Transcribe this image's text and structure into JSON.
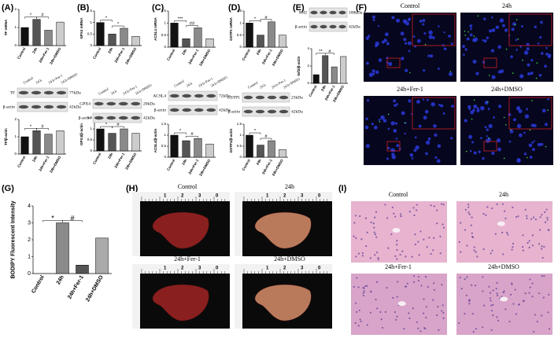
{
  "panels": [
    "(A)",
    "(B)",
    "(C)",
    "(D)",
    "(E)",
    "(F)",
    "(G)",
    "(H)",
    "(I)"
  ],
  "chart_data": [
    {
      "type": "bar",
      "ylabel": "TF mRNA",
      "categories": [
        "Control",
        "24h",
        "24h+Fer-1",
        "24h+DMSO"
      ],
      "values": [
        1.0,
        1.45,
        0.85,
        1.3
      ],
      "colors": [
        "#111111",
        "#555555",
        "#8a8a8a",
        "#cccccc"
      ],
      "ylim": [
        0,
        2
      ],
      "yticks": [
        0,
        1,
        2
      ],
      "annotations": [
        "*",
        "#"
      ]
    },
    {
      "type": "bar",
      "ylabel": "TF/β-actin",
      "categories": [
        "Control",
        "24h",
        "24h+Fer-1",
        "24h+DMSO"
      ],
      "values": [
        1.0,
        1.35,
        1.15,
        1.35
      ],
      "colors": [
        "#111111",
        "#555555",
        "#8a8a8a",
        "#cccccc"
      ],
      "ylim": [
        0,
        2
      ],
      "yticks": [
        0,
        1,
        2
      ],
      "annotations": [
        "*",
        "#"
      ]
    },
    {
      "type": "bar",
      "ylabel": "GPX4 mRNA",
      "categories": [
        "Control",
        "24h",
        "24h+Fer-1",
        "24h+DMSO"
      ],
      "values": [
        1.0,
        0.5,
        0.75,
        0.4
      ],
      "colors": [
        "#111111",
        "#555555",
        "#8a8a8a",
        "#cccccc"
      ],
      "ylim": [
        0,
        1.5
      ],
      "yticks": [
        0,
        0.5,
        1,
        1.5
      ],
      "annotations": [
        "*",
        "*"
      ]
    },
    {
      "type": "bar",
      "ylabel": "GPX4/β-actin",
      "categories": [
        "Control",
        "24h",
        "24h+Fer-1",
        "24h+DMSO"
      ],
      "values": [
        1.0,
        0.8,
        1.0,
        0.8
      ],
      "colors": [
        "#111111",
        "#555555",
        "#8a8a8a",
        "#cccccc"
      ],
      "ylim": [
        0,
        1.5
      ],
      "yticks": [
        0,
        0.5,
        1,
        1.5
      ],
      "annotations": [
        "*",
        "#"
      ]
    },
    {
      "type": "bar",
      "ylabel": "ACSL4 mRNA",
      "categories": [
        "Control",
        "24h",
        "24h+Fer-1",
        "24h+DMSO"
      ],
      "values": [
        1.0,
        0.35,
        0.8,
        0.35
      ],
      "colors": [
        "#111111",
        "#555555",
        "#8a8a8a",
        "#cccccc"
      ],
      "ylim": [
        0,
        1.5
      ],
      "yticks": [
        0,
        0.5,
        1,
        1.5
      ],
      "annotations": [
        "***",
        "##"
      ]
    },
    {
      "type": "bar",
      "ylabel": "ACSL4/β-actin",
      "categories": [
        "Control",
        "24h",
        "24h+Fer-1",
        "24h+DMSO"
      ],
      "values": [
        1.0,
        0.75,
        0.85,
        0.6
      ],
      "colors": [
        "#111111",
        "#555555",
        "#8a8a8a",
        "#cccccc"
      ],
      "ylim": [
        0,
        1.5
      ],
      "yticks": [
        0,
        0.5,
        1,
        1.5
      ],
      "annotations": [
        "*",
        "#"
      ]
    },
    {
      "type": "bar",
      "ylabel": "GSTP1 mRNA",
      "categories": [
        "Control",
        "24h",
        "24h+Fer-1",
        "24h+DMSO"
      ],
      "values": [
        1.0,
        0.5,
        1.05,
        0.5
      ],
      "colors": [
        "#111111",
        "#555555",
        "#8a8a8a",
        "#cccccc"
      ],
      "ylim": [
        0,
        1.5
      ],
      "yticks": [
        0,
        0.5,
        1,
        1.5
      ],
      "annotations": [
        "*",
        "#"
      ]
    },
    {
      "type": "bar",
      "ylabel": "GSTP1/β-actin",
      "categories": [
        "Control",
        "24h",
        "24h+Fer-1",
        "24h+DMSO"
      ],
      "values": [
        1.0,
        0.55,
        0.75,
        0.35
      ],
      "colors": [
        "#111111",
        "#555555",
        "#8a8a8a",
        "#cccccc"
      ],
      "ylim": [
        0,
        1.5
      ],
      "yticks": [
        0,
        0.5,
        1,
        1.5
      ],
      "annotations": [
        "*",
        "#"
      ]
    },
    {
      "type": "bar",
      "ylabel": "Nrf2/β-actin",
      "categories": [
        "Control",
        "24h",
        "24h+Fer-1",
        "24h+DMSO"
      ],
      "values": [
        1.0,
        3.2,
        1.9,
        3.1
      ],
      "colors": [
        "#111111",
        "#555555",
        "#8a8a8a",
        "#cccccc"
      ],
      "ylim": [
        0,
        4
      ],
      "yticks": [
        0,
        2,
        4
      ],
      "annotations": [
        "**",
        "#"
      ]
    },
    {
      "type": "bar",
      "ylabel": "BODIPY Fluorescent Intensity",
      "categories": [
        "Control",
        "24h",
        "24h+Fer-1",
        "24h+DMSO"
      ],
      "values": [
        0,
        3.0,
        0.5,
        2.1
      ],
      "colors": [
        "#111111",
        "#8a8a8a",
        "#555555",
        "#aaaaaa"
      ],
      "ylim": [
        0,
        4
      ],
      "yticks": [
        0,
        1,
        2,
        3,
        4
      ],
      "annotations": [
        "*",
        "#"
      ]
    }
  ],
  "blots": [
    {
      "lanes": [
        "Control",
        "24 h",
        "24 h+Fer-1",
        "24 h+DMSO"
      ],
      "rows": [
        {
          "protein": "TF",
          "size": "77kDa"
        },
        {
          "protein": "β-actin",
          "size": "42kDa"
        }
      ]
    },
    {
      "lanes": [
        "Control",
        "24 h",
        "24 h+Fer-1",
        "24 h+DMSO"
      ],
      "rows": [
        {
          "protein": "GPX4",
          "size": "20kDa"
        },
        {
          "protein": "β-actin",
          "size": "42kDa"
        }
      ]
    },
    {
      "lanes": [
        "Control",
        "24 h",
        "24 h+Fer-1",
        "24 h+DMSO"
      ],
      "rows": [
        {
          "protein": "ACSL4",
          "size": "72kDa"
        },
        {
          "protein": "β-actin",
          "size": "42kDa"
        }
      ]
    },
    {
      "lanes": [
        "Control",
        "24 h",
        "24 h+Fer-1",
        "24 h+DMSO"
      ],
      "rows": [
        {
          "protein": "GSTP1",
          "size": "23kDa"
        },
        {
          "protein": "β-actin",
          "size": "42kDa"
        }
      ]
    },
    {
      "lanes": [
        "Control",
        "24 h",
        "24 h+Fer-1",
        "24 h+DMSO"
      ],
      "rows": [
        {
          "protein": "Nrf2",
          "size": "100kDa"
        },
        {
          "protein": "β-actin",
          "size": "42kDa"
        }
      ]
    }
  ],
  "micrographs": {
    "labels": [
      "Control",
      "24h",
      "24h+Fer-1",
      "24h+DMSO"
    ]
  },
  "livers": {
    "labels": [
      "Control",
      "24h",
      "24h+Fer-1",
      "24h+DMSO"
    ],
    "ruler": [
      "1",
      "2",
      "3",
      "0"
    ]
  },
  "histology": {
    "labels": [
      "Control",
      "24h",
      "24h+Fer-1",
      "24h+DMSO"
    ]
  }
}
